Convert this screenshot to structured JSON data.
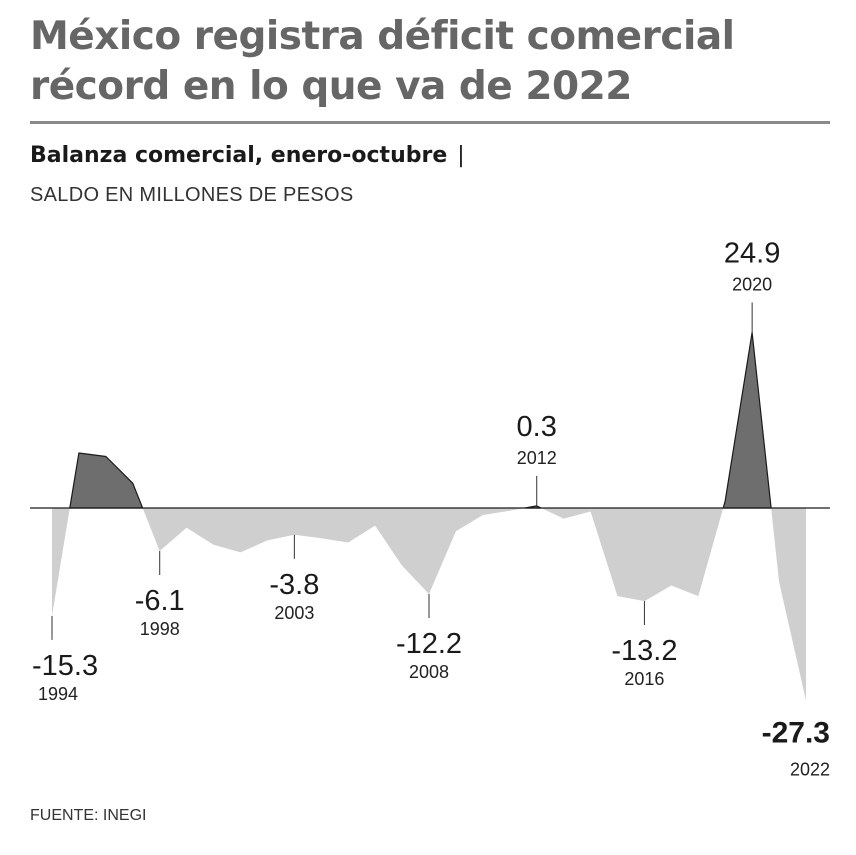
{
  "header": {
    "title_line1": "México registra déficit comercial",
    "title_line2": "récord en lo que va de 2022",
    "subtitle": "Balanza comercial, enero-octubre",
    "subtitle_separator": "|",
    "unit": "SALDO EN MILLONES DE PESOS"
  },
  "footer": {
    "source": "FUENTE: INEGI"
  },
  "colors": {
    "positive": "#6e6e6e",
    "negative": "#cfcfcf",
    "title": "#666666",
    "rule": "#8a8a8a"
  },
  "chart_data": {
    "type": "area",
    "x": [
      1994,
      1995,
      1996,
      1997,
      1998,
      1999,
      2000,
      2001,
      2002,
      2003,
      2004,
      2005,
      2006,
      2007,
      2008,
      2009,
      2010,
      2011,
      2012,
      2013,
      2014,
      2015,
      2016,
      2017,
      2018,
      2019,
      2020,
      2021,
      2022
    ],
    "values": [
      -15.3,
      7.8,
      7.3,
      3.5,
      -6.1,
      -2.8,
      -5.2,
      -6.3,
      -4.6,
      -3.8,
      -4.3,
      -4.9,
      -2.5,
      -8.2,
      -12.2,
      -3.3,
      -1.0,
      -0.4,
      0.3,
      -1.5,
      -0.5,
      -12.5,
      -13.2,
      -11.0,
      -12.5,
      1.0,
      24.9,
      -10.5,
      -27.3
    ],
    "labeled_points": [
      {
        "year": "1994",
        "value": "-15.3"
      },
      {
        "year": "1998",
        "value": "-6.1"
      },
      {
        "year": "2003",
        "value": "-3.8"
      },
      {
        "year": "2008",
        "value": "-12.2"
      },
      {
        "year": "2012",
        "value": "0.3"
      },
      {
        "year": "2016",
        "value": "-13.2"
      },
      {
        "year": "2020",
        "value": "24.9"
      },
      {
        "year": "2022",
        "value": "-27.3"
      }
    ],
    "ylim": [
      -27.3,
      24.9
    ],
    "grid": false,
    "legend": "none"
  }
}
